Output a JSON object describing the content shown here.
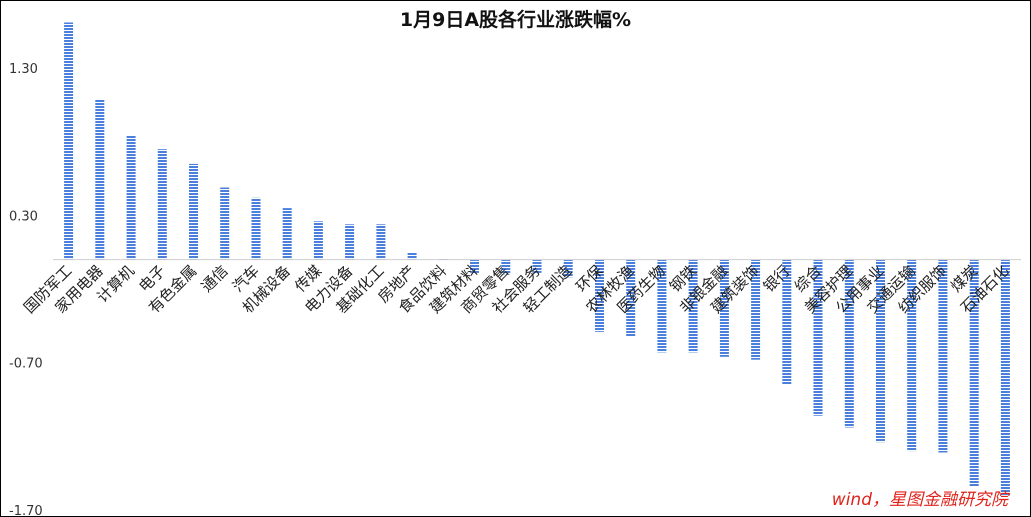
{
  "chart_data": {
    "type": "bar",
    "title": "1月9日A股各行业涨跌幅%",
    "xlabel": "",
    "ylabel": "",
    "ylim": [
      -1.7,
      1.6
    ],
    "yticks": [
      1.3,
      0.3,
      -0.7,
      -1.7
    ],
    "ytick_labels": [
      "1.30",
      "0.30",
      "-0.70",
      "-1.70"
    ],
    "grid": false,
    "legend": "none",
    "bar_color": "#4a7fdc",
    "categories": [
      "国防军工",
      "家用电器",
      "计算机",
      "电子",
      "有色金属",
      "通信",
      "汽车",
      "机械设备",
      "传媒",
      "电力设备",
      "基础化工",
      "房地产",
      "食品饮料",
      "建筑材料",
      "商贸零售",
      "社会服务",
      "轻工制造",
      "环保",
      "农林牧渔",
      "医药生物",
      "钢铁",
      "非银金融",
      "建筑装饰",
      "银行",
      "综合",
      "美容护理",
      "公用事业",
      "交通运输",
      "纺织服饰",
      "煤炭",
      "石油石化"
    ],
    "values": [
      1.61,
      1.09,
      0.84,
      0.75,
      0.65,
      0.49,
      0.42,
      0.35,
      0.26,
      0.24,
      0.24,
      0.05,
      0.01,
      -0.09,
      -0.1,
      -0.09,
      -0.12,
      -0.49,
      -0.52,
      -0.63,
      -0.63,
      -0.66,
      -0.68,
      -0.85,
      -1.06,
      -1.14,
      -1.24,
      -1.3,
      -1.31,
      -1.54,
      -1.6
    ]
  },
  "watermark": "wind，星图金融研究院"
}
